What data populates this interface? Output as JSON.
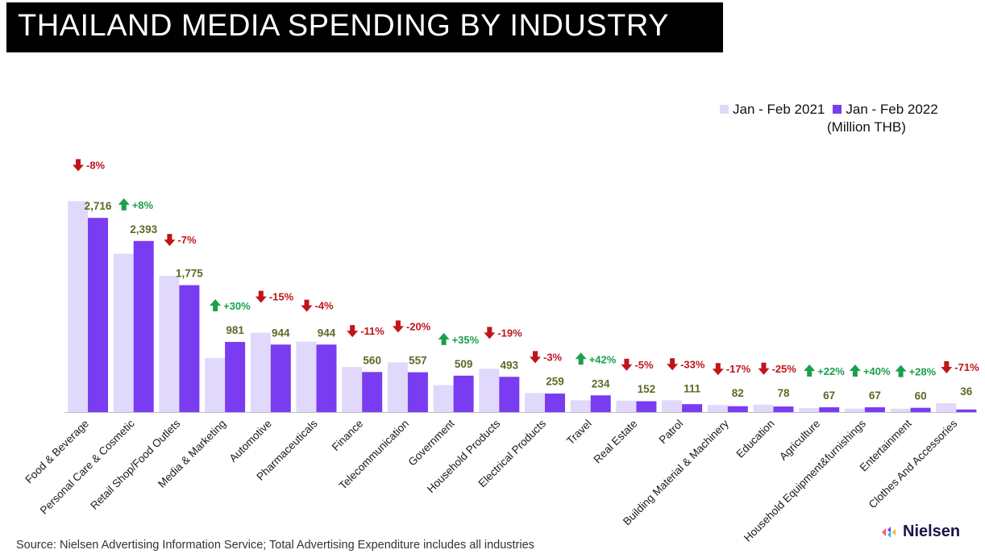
{
  "title": "THAILAND MEDIA SPENDING BY INDUSTRY",
  "unit_note": "(Million THB)",
  "source": "Source: Nielsen Advertising Information Service; Total Advertising Expenditure includes all industries",
  "logo_text": "Nielsen",
  "colors": {
    "series_2021": "#e0d9fb",
    "series_2022": "#7a3cf0",
    "up": "#1a9f4c",
    "down": "#c0141b",
    "value_label": "#5a6b26"
  },
  "chart_data": {
    "type": "bar",
    "categories": [
      "Food & Beverage",
      "Personal Care & Cosmetic",
      "Retail Shop/Food Outlets",
      "Media & Marketing",
      "Automotive",
      "Pharmaceuticals",
      "Finance",
      "Telecommunication",
      "Government",
      "Household Products",
      "Electrical Products",
      "Travel",
      "Real Estate",
      "Patrol",
      "Building Material & Machinery",
      "Education",
      "Agriculture",
      "Household Equipment&furnishings",
      "Entertainment",
      "Clothes And Accessories"
    ],
    "series": [
      {
        "name": "Jan - Feb 2021",
        "values": [
          2950,
          2215,
          1905,
          755,
          1110,
          985,
          630,
          695,
          377,
          605,
          266,
          165,
          160,
          166,
          99,
          104,
          55,
          48,
          47,
          124
        ]
      },
      {
        "name": "Jan - Feb 2022",
        "values": [
          2716,
          2393,
          1775,
          981,
          944,
          944,
          560,
          557,
          509,
          493,
          259,
          234,
          152,
          111,
          82,
          78,
          67,
          67,
          60,
          36
        ]
      }
    ],
    "value_labels": [
      "2,716",
      "2,393",
      "1,775",
      "981",
      "944",
      "944",
      "560",
      "557",
      "509",
      "493",
      "259",
      "234",
      "152",
      "111",
      "82",
      "78",
      "67",
      "67",
      "60",
      "36"
    ],
    "changes": [
      "-8%",
      "+8%",
      "-7%",
      "+30%",
      "-15%",
      "-4%",
      "-11%",
      "-20%",
      "+35%",
      "-19%",
      "-3%",
      "+42%",
      "-5%",
      "-33%",
      "-17%",
      "-25%",
      "+22%",
      "+40%",
      "+28%",
      "-71%"
    ],
    "change_directions": [
      "down",
      "up",
      "down",
      "up",
      "down",
      "down",
      "down",
      "down",
      "up",
      "down",
      "down",
      "up",
      "down",
      "down",
      "down",
      "down",
      "up",
      "up",
      "up",
      "down"
    ],
    "ylim": [
      0,
      3000
    ],
    "legend": "top-right",
    "grid": false
  }
}
